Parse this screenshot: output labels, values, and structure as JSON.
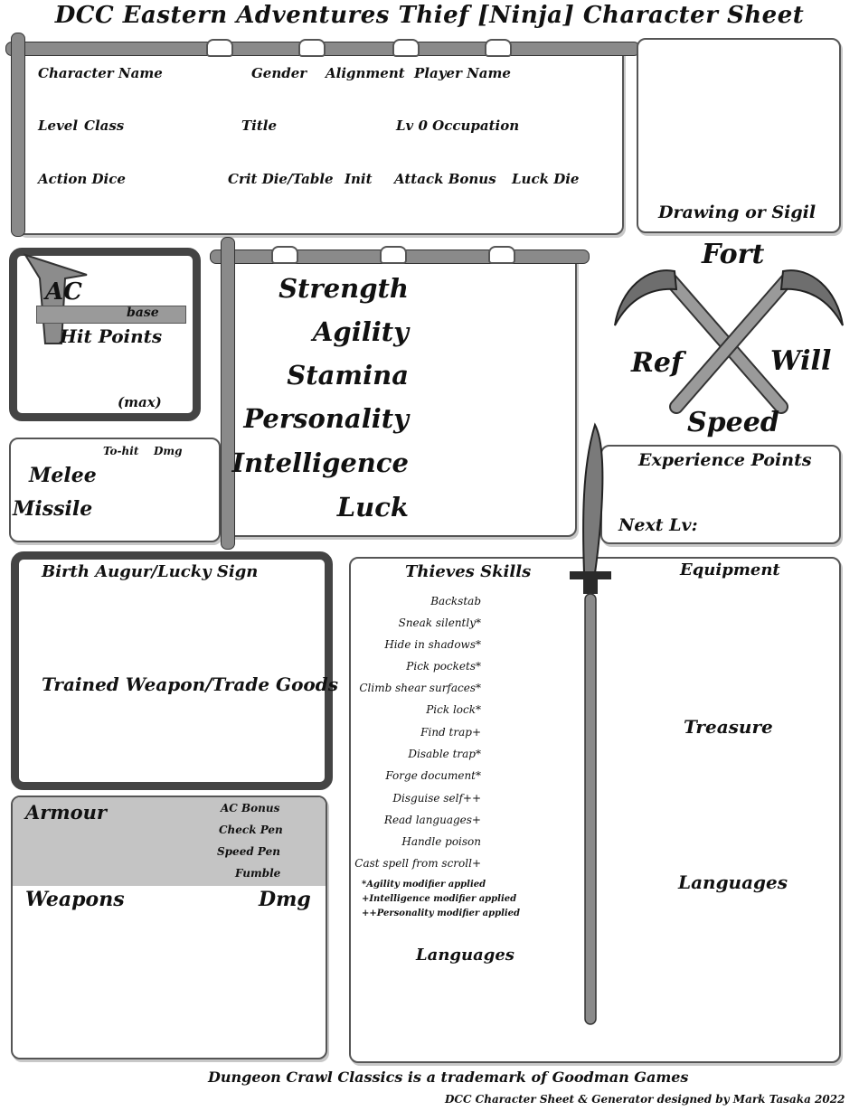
{
  "title": "DCC Eastern Adventures Thief [Ninja] Character Sheet",
  "header": {
    "character_name": "Character Name",
    "gender": "Gender",
    "alignment": "Alignment",
    "player_name": "Player Name",
    "level": "Level",
    "class": "Class",
    "title": "Title",
    "occupation": "Lv 0 Occupation",
    "action_dice": "Action Dice",
    "crit": "Crit Die/Table",
    "init": "Init",
    "attack_bonus": "Attack Bonus",
    "luck_die": "Luck Die"
  },
  "drawing_label": "Drawing or Sigil",
  "defense": {
    "ac": "AC",
    "base": "base",
    "hit_points": "Hit Points",
    "max": "(max)"
  },
  "attacks": {
    "to_hit": "To-hit",
    "dmg": "Dmg",
    "melee": "Melee",
    "missile": "Missile"
  },
  "abilities": [
    "Strength",
    "Agility",
    "Stamina",
    "Personality",
    "Intelligence",
    "Luck"
  ],
  "saves": {
    "fort": "Fort",
    "ref": "Ref",
    "will": "Will",
    "speed": "Speed"
  },
  "experience": {
    "label": "Experience Points",
    "next": "Next Lv:"
  },
  "birth": {
    "augur": "Birth Augur/Lucky Sign",
    "trained": "Trained Weapon/Trade Goods"
  },
  "armour": {
    "label": "Armour",
    "ac_bonus": "AC Bonus",
    "check_pen": "Check Pen",
    "speed_pen": "Speed Pen",
    "fumble": "Fumble",
    "weapons": "Weapons",
    "dmg": "Dmg"
  },
  "thieves": {
    "heading": "Thieves Skills",
    "skills": [
      "Backstab",
      "Sneak silently*",
      "Hide in shadows*",
      "Pick pockets*",
      "Climb shear surfaces*",
      "Pick lock*",
      "Find trap+",
      "Disable trap*",
      "Forge document*",
      "Disguise self++",
      "Read languages+",
      "Handle poison",
      "Cast spell from scroll+"
    ],
    "notes": [
      "*Agility modifier applied",
      "+Intelligence modifier applied",
      "++Personality modifier applied"
    ],
    "languages": "Languages"
  },
  "right_column": {
    "equipment": "Equipment",
    "treasure": "Treasure",
    "languages": "Languages"
  },
  "footer": {
    "trademark": "Dungeon Crawl Classics is a trademark of Goodman Games",
    "credit": "DCC Character Sheet & Generator designed by Mark Tasaka 2022"
  }
}
